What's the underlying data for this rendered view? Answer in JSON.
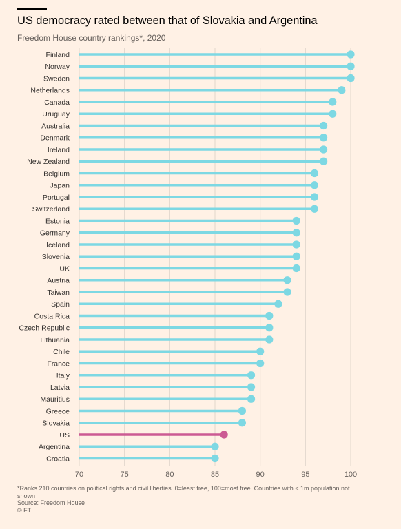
{
  "header": {
    "title": "US democracy rated between that of Slovakia and Argentina",
    "subtitle": "Freedom House country rankings*, 2020"
  },
  "footer": {
    "note": "*Ranks 210 countries on political rights and civil liberties. 0=least free, 100=most free. Countries with < 1m population not shown",
    "source": "Source: Freedom House",
    "credit": "© FT"
  },
  "colors": {
    "default": "#7dd8e3",
    "highlight": "#cc5a93",
    "background": "#fff1e5",
    "grid": "#e0d6cc"
  },
  "chart_data": {
    "type": "lollipop",
    "xlim": [
      70,
      100
    ],
    "ticks": [
      70,
      75,
      80,
      85,
      90,
      95,
      100
    ],
    "grid": true,
    "highlight": "US",
    "categories": [
      "Finland",
      "Norway",
      "Sweden",
      "Netherlands",
      "Canada",
      "Uruguay",
      "Australia",
      "Denmark",
      "Ireland",
      "New Zealand",
      "Belgium",
      "Japan",
      "Portugal",
      "Switzerland",
      "Estonia",
      "Germany",
      "Iceland",
      "Slovenia",
      "UK",
      "Austria",
      "Taiwan",
      "Spain",
      "Costa Rica",
      "Czech Republic",
      "Lithuania",
      "Chile",
      "France",
      "Italy",
      "Latvia",
      "Mauritius",
      "Greece",
      "Slovakia",
      "US",
      "Argentina",
      "Croatia"
    ],
    "values": [
      100,
      100,
      100,
      99,
      98,
      98,
      97,
      97,
      97,
      97,
      96,
      96,
      96,
      96,
      94,
      94,
      94,
      94,
      94,
      93,
      93,
      92,
      91,
      91,
      91,
      90,
      90,
      89,
      89,
      89,
      88,
      88,
      86,
      85,
      85
    ]
  }
}
